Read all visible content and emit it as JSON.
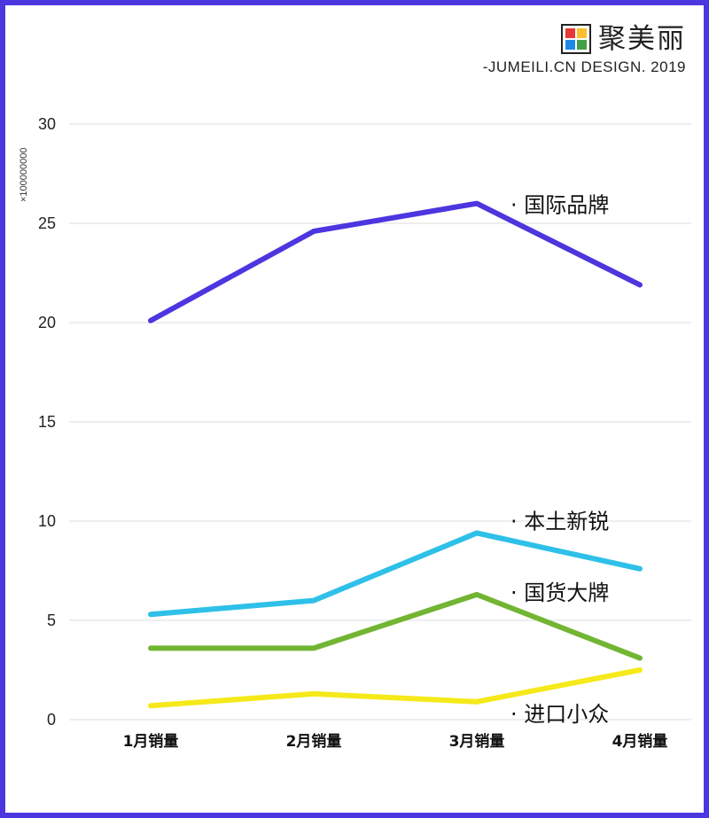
{
  "brand": {
    "name": "聚美丽",
    "subtitle": "-JUMEILI.CN DESIGN. 2019",
    "colors": [
      "#e53935",
      "#fbc02d",
      "#43a047",
      "#1e88e5"
    ]
  },
  "chart_data": {
    "type": "line",
    "title": "",
    "xlabel": "",
    "ylabel": "",
    "y_unit_label": "×100000000",
    "categories": [
      "1月销量",
      "2月销量",
      "3月销量",
      "4月销量"
    ],
    "ylim": [
      0,
      30
    ],
    "yticks": [
      0,
      5,
      10,
      15,
      20,
      25,
      30
    ],
    "grid": true,
    "series": [
      {
        "name": "国际品牌",
        "label": "· 国际品牌",
        "color": "#4b36e0",
        "values": [
          20.1,
          24.6,
          26.0,
          21.9
        ]
      },
      {
        "name": "本土新锐",
        "label": "· 本土新锐",
        "color": "#2ec0e8",
        "values": [
          5.3,
          6.0,
          9.4,
          7.6
        ]
      },
      {
        "name": "国货大牌",
        "label": "· 国货大牌",
        "color": "#72b533",
        "values": [
          3.6,
          3.6,
          6.3,
          3.1
        ]
      },
      {
        "name": "进口小众",
        "label": "· 进口小众",
        "color": "#f5e91a",
        "values": [
          0.7,
          1.3,
          0.9,
          2.5
        ]
      }
    ]
  }
}
